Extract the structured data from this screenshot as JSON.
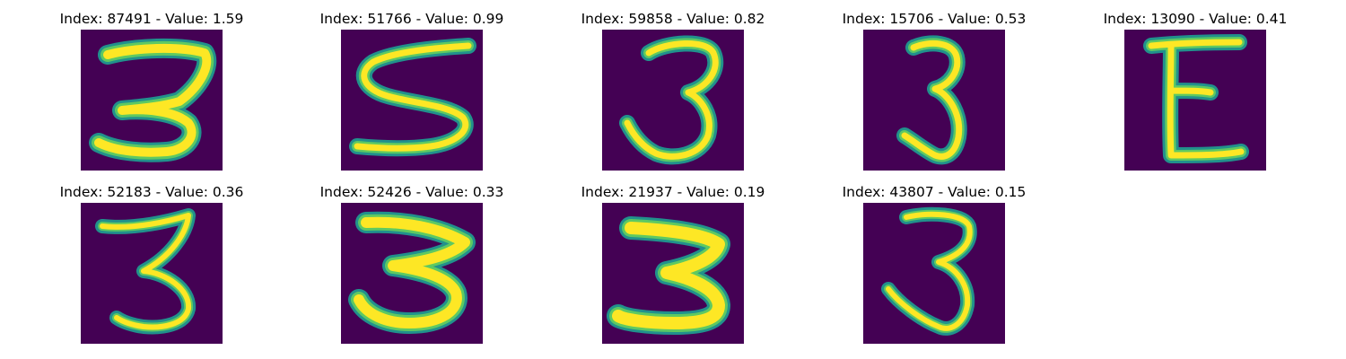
{
  "colors": {
    "background": "#440154",
    "stroke_edge": "#21918c",
    "stroke_mid": "#5ec962",
    "stroke_core": "#fde725"
  },
  "panels": [
    {
      "title": "Index: 87491 - Value: 1.59",
      "index": 87491,
      "value": 1.59,
      "glyph": "3"
    },
    {
      "title": "Index: 51766 - Value: 0.99",
      "index": 51766,
      "value": 0.99,
      "glyph": "S"
    },
    {
      "title": "Index: 59858 - Value: 0.82",
      "index": 59858,
      "value": 0.82,
      "glyph": "3"
    },
    {
      "title": "Index: 15706 - Value: 0.53",
      "index": 15706,
      "value": 0.53,
      "glyph": "3"
    },
    {
      "title": "Index: 13090 - Value: 0.41",
      "index": 13090,
      "value": 0.41,
      "glyph": "E"
    },
    {
      "title": "Index: 52183 - Value: 0.36",
      "index": 52183,
      "value": 0.36,
      "glyph": "3"
    },
    {
      "title": "Index: 52426 - Value: 0.33",
      "index": 52426,
      "value": 0.33,
      "glyph": "3"
    },
    {
      "title": "Index: 21937 - Value: 0.19",
      "index": 21937,
      "value": 0.19,
      "glyph": "3"
    },
    {
      "title": "Index: 43807 - Value: 0.15",
      "index": 43807,
      "value": 0.15,
      "glyph": "3"
    }
  ]
}
